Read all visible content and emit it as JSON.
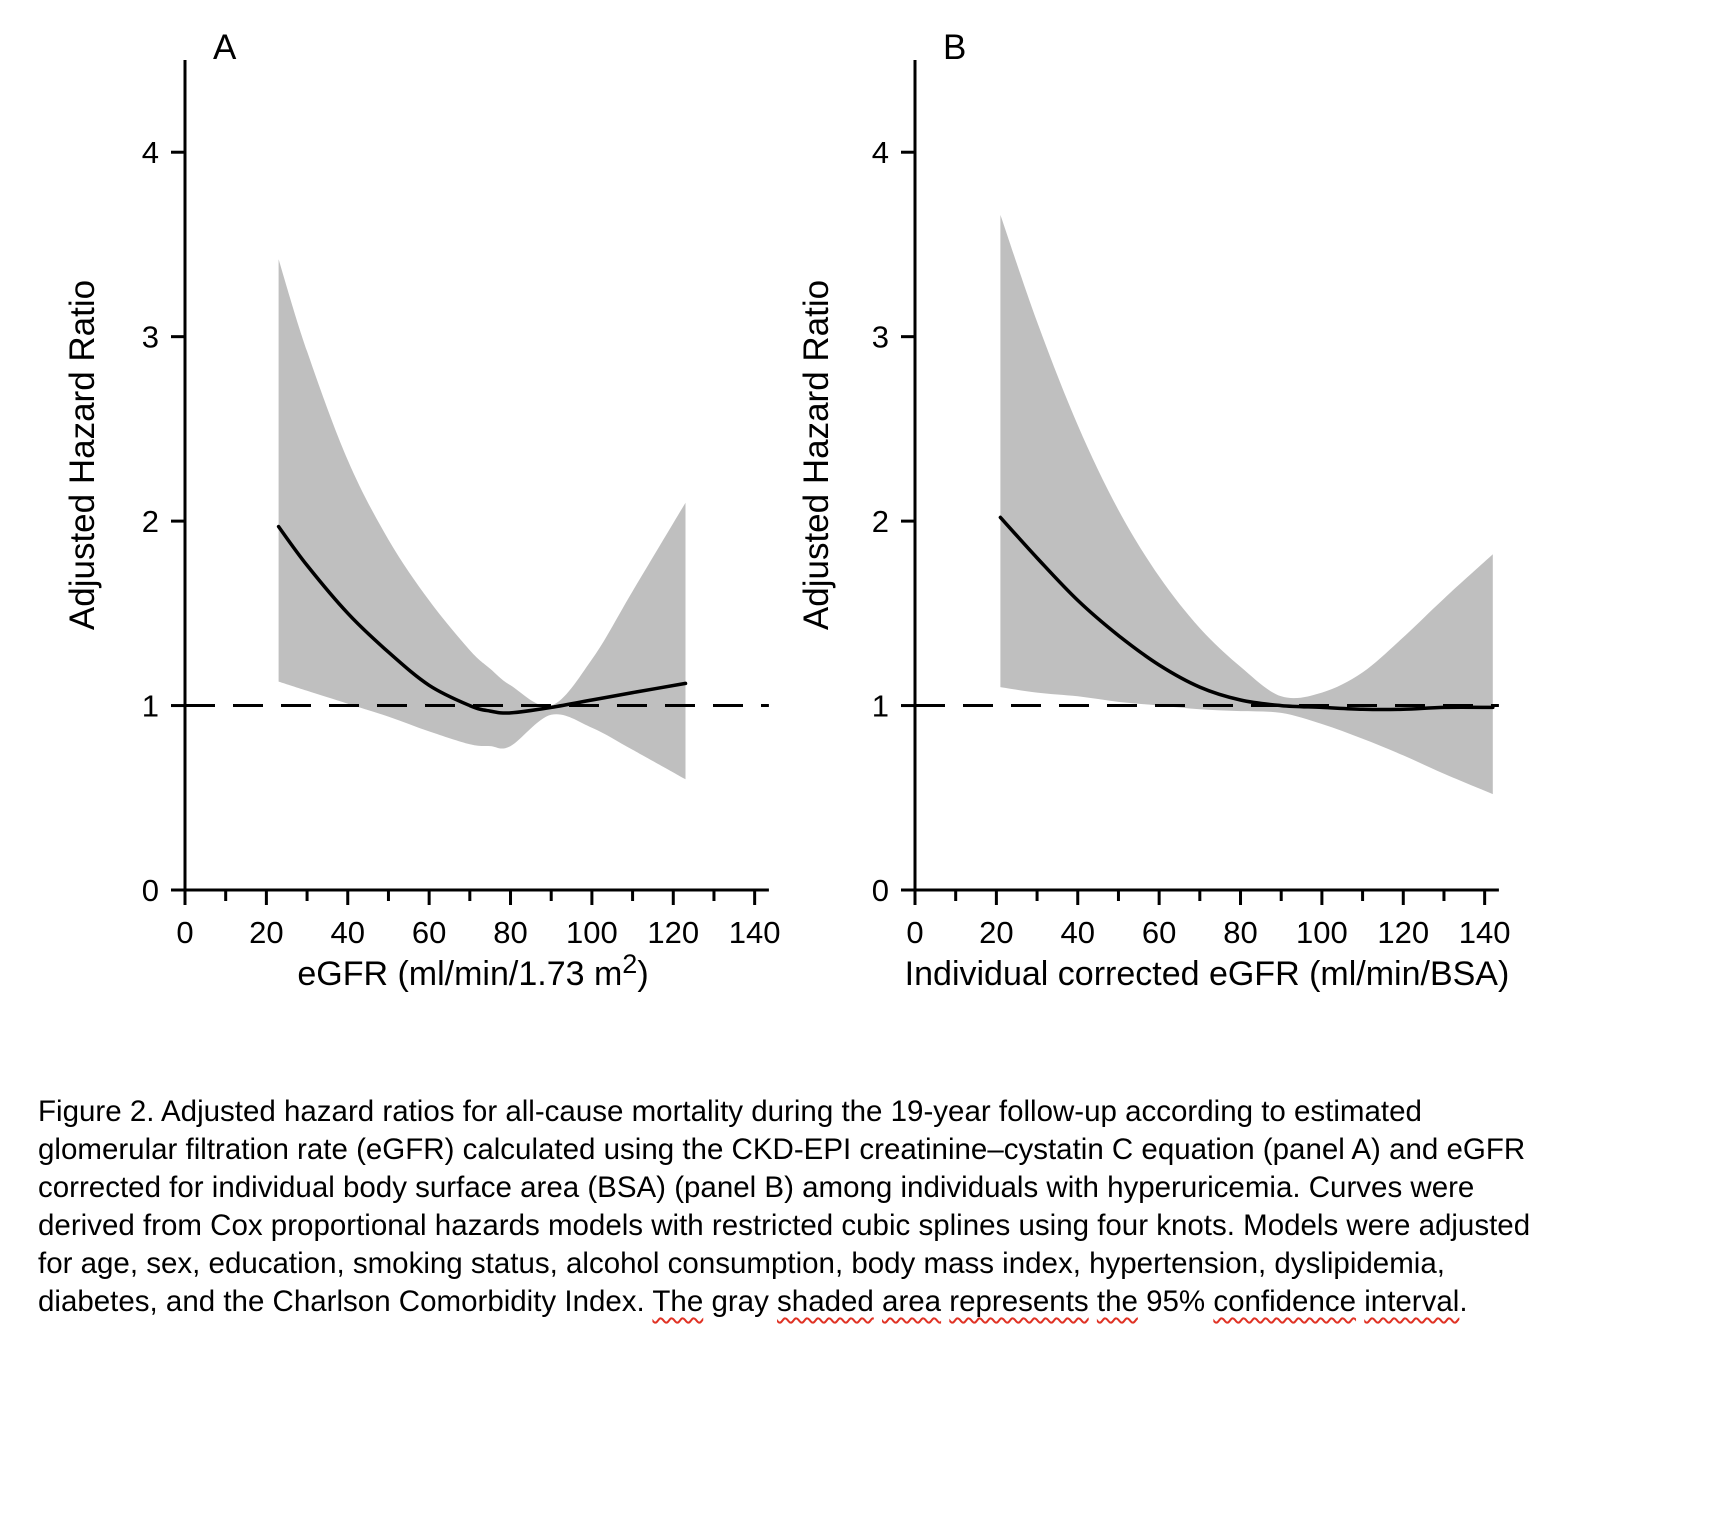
{
  "chart_data": [
    {
      "type": "line",
      "panel_label": "A",
      "ylabel": "Adjusted Hazard Ratio",
      "xlabel_pre": "eGFR (ml/min/1.73 m",
      "xlabel_sup": "2",
      "xlabel_post": ")",
      "xlim": [
        0,
        145
      ],
      "ylim": [
        0,
        4.5
      ],
      "x_major_ticks": [
        0,
        20,
        40,
        60,
        80,
        100,
        120,
        140
      ],
      "x_minor_ticks": [
        10,
        30,
        50,
        70,
        90,
        110,
        130
      ],
      "y_major_ticks": [
        0,
        1,
        2,
        3,
        4
      ],
      "reference_line_y": 1,
      "band_color": "#bfbfbf",
      "line_color": "#000000",
      "series": [
        {
          "name": "adjusted_hazard_ratio",
          "x": [
            23,
            30,
            40,
            50,
            60,
            70,
            75,
            80,
            90,
            100,
            110,
            123
          ],
          "y": [
            1.97,
            1.76,
            1.5,
            1.29,
            1.11,
            1.0,
            0.97,
            0.96,
            0.99,
            1.03,
            1.07,
            1.12
          ]
        },
        {
          "name": "ci_upper",
          "x": [
            23,
            30,
            40,
            50,
            60,
            70,
            75,
            80,
            90,
            100,
            110,
            123
          ],
          "y": [
            3.42,
            2.92,
            2.33,
            1.9,
            1.57,
            1.3,
            1.2,
            1.11,
            1.0,
            1.25,
            1.62,
            2.1
          ]
        },
        {
          "name": "ci_lower",
          "x": [
            23,
            30,
            40,
            50,
            60,
            70,
            75,
            80,
            90,
            100,
            110,
            123
          ],
          "y": [
            1.13,
            1.08,
            1.01,
            0.94,
            0.86,
            0.79,
            0.78,
            0.78,
            0.95,
            0.88,
            0.76,
            0.6
          ]
        }
      ]
    },
    {
      "type": "line",
      "panel_label": "B",
      "ylabel": "Adjusted Hazard Ratio",
      "xlabel_pre": "Individual corrected eGFR (ml/min/BSA)",
      "xlabel_sup": "",
      "xlabel_post": "",
      "xlim": [
        0,
        145
      ],
      "ylim": [
        0,
        4.5
      ],
      "x_major_ticks": [
        0,
        20,
        40,
        60,
        80,
        100,
        120,
        140
      ],
      "x_minor_ticks": [
        10,
        30,
        50,
        70,
        90,
        110,
        130
      ],
      "y_major_ticks": [
        0,
        1,
        2,
        3,
        4
      ],
      "reference_line_y": 1,
      "band_color": "#bfbfbf",
      "line_color": "#000000",
      "series": [
        {
          "name": "adjusted_hazard_ratio",
          "x": [
            21,
            30,
            40,
            50,
            60,
            70,
            80,
            90,
            100,
            110,
            120,
            130,
            142
          ],
          "y": [
            2.02,
            1.8,
            1.57,
            1.38,
            1.22,
            1.1,
            1.03,
            1.0,
            0.99,
            0.98,
            0.98,
            0.99,
            0.99
          ]
        },
        {
          "name": "ci_upper",
          "x": [
            21,
            30,
            40,
            50,
            60,
            70,
            80,
            90,
            100,
            110,
            120,
            130,
            142
          ],
          "y": [
            3.66,
            3.08,
            2.52,
            2.06,
            1.7,
            1.42,
            1.21,
            1.05,
            1.07,
            1.18,
            1.37,
            1.58,
            1.82
          ]
        },
        {
          "name": "ci_lower",
          "x": [
            21,
            30,
            40,
            50,
            60,
            70,
            80,
            90,
            100,
            110,
            120,
            130,
            142
          ],
          "y": [
            1.1,
            1.07,
            1.05,
            1.02,
            1.0,
            0.98,
            0.97,
            0.96,
            0.9,
            0.82,
            0.73,
            0.63,
            0.52
          ]
        }
      ]
    }
  ],
  "caption": {
    "segments": [
      {
        "text": "Figure 2. Adjusted hazard ratios for all-cause mortality during the 19-year follow-up according to estimated glomerular filtration rate (eGFR) calculated using the CKD-EPI creatinine–cystatin C equation (panel A) and eGFR corrected for individual body surface area (BSA) (panel B) among individuals with hyperuricemia. Curves were derived from Cox proportional hazards models with restricted cubic splines using four knots. Models were adjusted for age, sex, education, smoking status, alcohol consumption, body mass index, hypertension, dyslipidemia, diabetes, and the Charlson Comorbidity Index. ",
        "wavy": false
      },
      {
        "text": "The",
        "wavy": true
      },
      {
        "text": " gray ",
        "wavy": false
      },
      {
        "text": "shaded",
        "wavy": true
      },
      {
        "text": " ",
        "wavy": false
      },
      {
        "text": "area",
        "wavy": true
      },
      {
        "text": " ",
        "wavy": false
      },
      {
        "text": "represents",
        "wavy": true
      },
      {
        "text": " ",
        "wavy": false
      },
      {
        "text": "the",
        "wavy": true
      },
      {
        "text": " 95% ",
        "wavy": false
      },
      {
        "text": "confidence",
        "wavy": true
      },
      {
        "text": " ",
        "wavy": false
      },
      {
        "text": "interval",
        "wavy": true
      },
      {
        "text": ".",
        "wavy": false
      }
    ]
  }
}
